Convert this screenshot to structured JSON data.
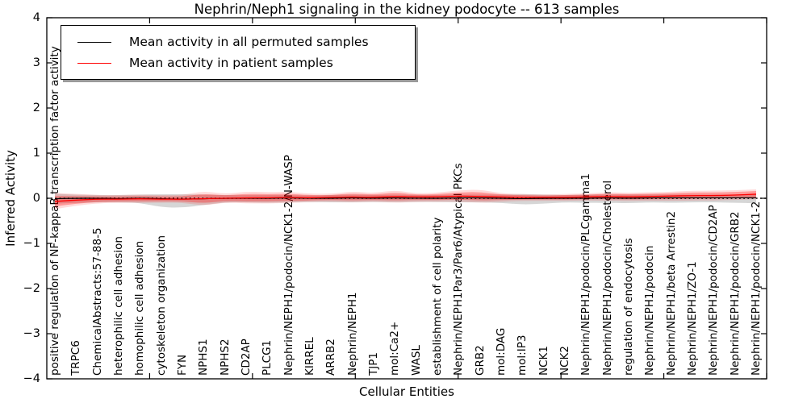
{
  "figure": {
    "title": "Nephrin/Neph1 signaling in the kidney podocyte -- 613 samples",
    "xlabel": "Cellular Entities",
    "ylabel": "Inferred Activity"
  },
  "legend": {
    "entries": [
      {
        "label": "Mean activity in all permuted samples",
        "color": "#000000"
      },
      {
        "label": "Mean activity in patient samples",
        "color": "#ff0000"
      }
    ]
  },
  "chart_data": {
    "type": "line",
    "title": "Nephrin/Neph1 signaling in the kidney podocyte -- 613 samples",
    "xlabel": "Cellular Entities",
    "ylabel": "Inferred Activity",
    "ylim": [
      -4,
      4
    ],
    "ytick_values": [
      4,
      3,
      2,
      1,
      0,
      -1,
      -2,
      -3,
      -4
    ],
    "ytick_labels": [
      "4",
      "3",
      "2",
      "1",
      "0",
      "−1",
      "−2",
      "−3",
      "−4"
    ],
    "grid": false,
    "legend_position": "upper left",
    "zero_line_style": "dotted",
    "categories": [
      "positive regulation of NF-kappaB transcription factor activity",
      "TRPC6",
      "ChemicalAbstracts:57-88-5",
      "heterophilic cell adhesion",
      "homophilic cell adhesion",
      "cytoskeleton organization",
      "FYN",
      "NPHS1",
      "NPHS2",
      "CD2AP",
      "PLCG1",
      "Nephrin/NEPH1/podocin/NCK1-2/N-WASP",
      "KIRREL",
      "ARRB2",
      "Nephrin/NEPH1",
      "TJP1",
      "mol:Ca2+",
      "WASL",
      "establishment of cell polarity",
      "Nephrin/NEPH1Par3/Par6/Atypical PKCs",
      "GRB2",
      "mol:DAG",
      "mol:IP3",
      "NCK1",
      "NCK2",
      "Nephrin/NEPH1/podocin/PLCgamma1",
      "Nephrin/NEPH1/podocin/Cholesterol",
      "regulation of endocytosis",
      "Nephrin/NEPH1/podocin",
      "Nephrin/NEPH1/beta Arrestin2",
      "Nephrin/NEPH1/ZO-1",
      "Nephrin/NEPH1/podocin/CD2AP",
      "Nephrin/NEPH1/podocin/GRB2",
      "Nephrin/NEPH1/podocin/NCK1-2"
    ],
    "series": [
      {
        "name": "Mean activity in all permuted samples",
        "color": "#000000",
        "band_color": "rgba(0,0,0,0.16)",
        "values": [
          -0.01,
          0.0,
          0.0,
          -0.01,
          0.0,
          -0.01,
          -0.02,
          -0.01,
          0.0,
          0.0,
          0.0,
          0.01,
          0.0,
          0.0,
          0.01,
          0.0,
          0.01,
          0.0,
          0.0,
          0.01,
          0.01,
          0.0,
          -0.01,
          0.0,
          0.0,
          0.0,
          0.01,
          0.0,
          0.01,
          0.01,
          0.01,
          0.01,
          0.01,
          0.01
        ],
        "band_upper": [
          0.1,
          0.08,
          0.07,
          0.07,
          0.08,
          0.09,
          0.09,
          0.08,
          0.07,
          0.07,
          0.07,
          0.07,
          0.06,
          0.07,
          0.08,
          0.07,
          0.08,
          0.07,
          0.07,
          0.08,
          0.08,
          0.08,
          0.09,
          0.08,
          0.07,
          0.08,
          0.08,
          0.08,
          0.08,
          0.08,
          0.08,
          0.08,
          0.08,
          0.09
        ],
        "band_lower": [
          -0.12,
          -0.1,
          -0.09,
          -0.09,
          -0.1,
          -0.2,
          -0.21,
          -0.15,
          -0.09,
          -0.09,
          -0.1,
          -0.09,
          -0.08,
          -0.09,
          -0.09,
          -0.08,
          -0.09,
          -0.08,
          -0.08,
          -0.09,
          -0.09,
          -0.1,
          -0.14,
          -0.12,
          -0.09,
          -0.1,
          -0.1,
          -0.11,
          -0.09,
          -0.1,
          -0.09,
          -0.09,
          -0.1,
          -0.11
        ]
      },
      {
        "name": "Mean activity in patient samples",
        "color": "#ff0000",
        "band_color": "rgba(255,0,0,0.30)",
        "outer_band_color": "rgba(255,0,0,0.14)",
        "values": [
          -0.07,
          -0.04,
          -0.02,
          -0.02,
          -0.01,
          -0.02,
          -0.02,
          -0.01,
          0.0,
          0.01,
          0.01,
          0.02,
          0.01,
          0.02,
          0.03,
          0.02,
          0.04,
          0.03,
          0.03,
          0.05,
          0.04,
          0.03,
          0.02,
          0.02,
          0.02,
          0.03,
          0.04,
          0.03,
          0.04,
          0.05,
          0.06,
          0.06,
          0.07,
          0.09
        ],
        "band_upper": [
          0.05,
          0.05,
          0.04,
          0.04,
          0.05,
          0.04,
          0.04,
          0.1,
          0.06,
          0.1,
          0.09,
          0.1,
          0.07,
          0.07,
          0.11,
          0.08,
          0.13,
          0.08,
          0.09,
          0.13,
          0.14,
          0.08,
          0.07,
          0.06,
          0.07,
          0.08,
          0.1,
          0.09,
          0.1,
          0.11,
          0.13,
          0.13,
          0.14,
          0.16
        ],
        "band_lower": [
          -0.18,
          -0.12,
          -0.08,
          -0.07,
          -0.07,
          -0.07,
          -0.07,
          -0.11,
          -0.06,
          -0.07,
          -0.07,
          -0.06,
          -0.05,
          -0.04,
          -0.05,
          -0.04,
          -0.05,
          -0.04,
          -0.04,
          -0.03,
          -0.05,
          -0.04,
          -0.03,
          -0.03,
          -0.03,
          -0.02,
          -0.02,
          -0.03,
          -0.02,
          -0.02,
          -0.01,
          -0.01,
          0.0,
          0.02
        ]
      }
    ]
  }
}
